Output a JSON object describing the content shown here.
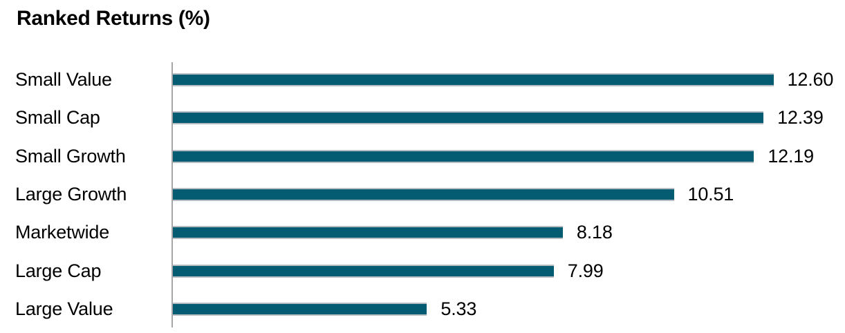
{
  "page": {
    "background": "#FFFFFF"
  },
  "colors": {
    "bar_fill": "#045C72",
    "bar_edge": "#B5BDC2",
    "axis_line": "#A6A6A6",
    "text": "#000000"
  },
  "chart_data": {
    "type": "bar",
    "orientation": "horizontal",
    "title": "Ranked Returns (%)",
    "categories": [
      "Small Value",
      "Small Cap",
      "Small Growth",
      "Large Growth",
      "Marketwide",
      "Large Cap",
      "Large Value"
    ],
    "values": [
      12.6,
      12.39,
      12.19,
      10.51,
      8.18,
      7.99,
      5.33
    ],
    "value_labels": [
      "12.60",
      "12.39",
      "12.19",
      "10.51",
      "8.18",
      "7.99",
      "5.33"
    ],
    "xlabel": "",
    "ylabel": "",
    "xlim": [
      0,
      14.1
    ],
    "grid": false,
    "legend": null,
    "value_label_position": "end-of-bar",
    "sort_order": "descending"
  }
}
